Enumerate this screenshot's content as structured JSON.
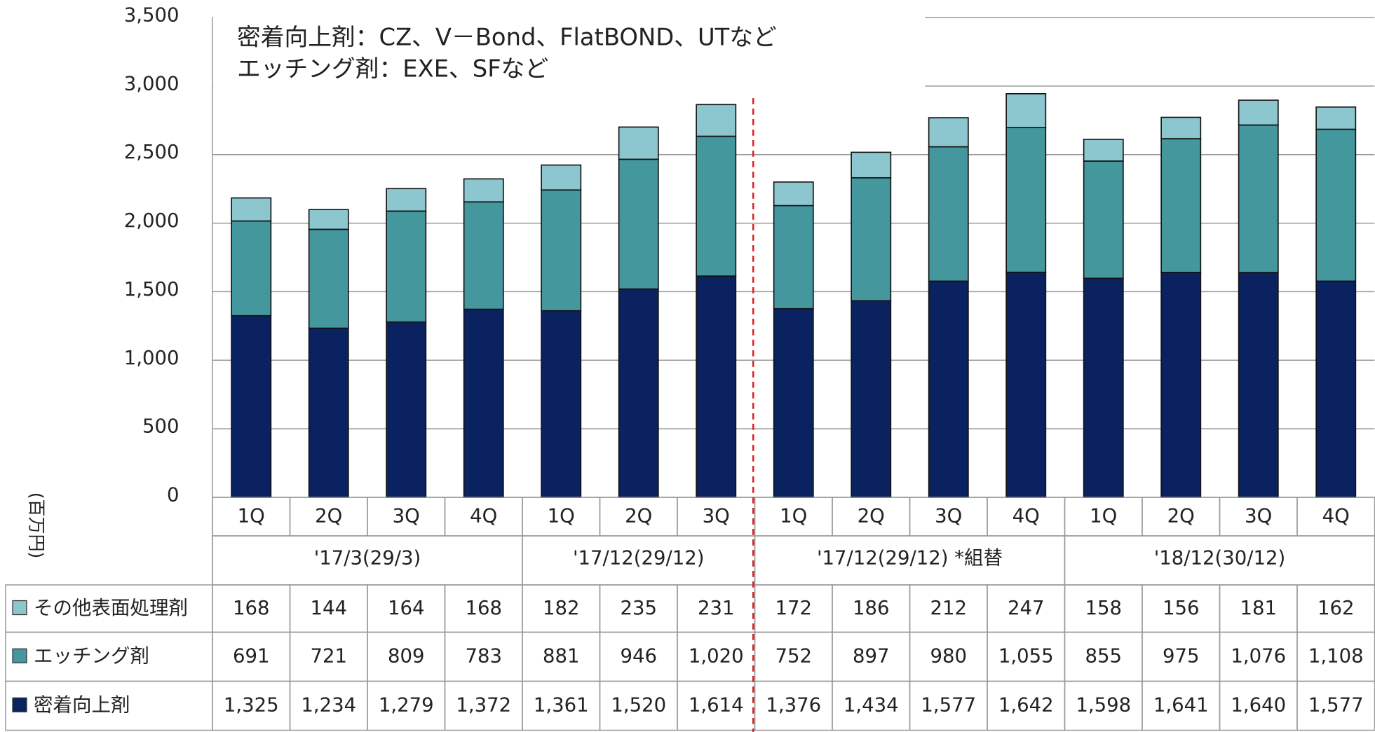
{
  "chart_data": {
    "type": "stacked-bar",
    "y_label": "(百万円)",
    "annotations": [
      "密着向上剤：CZ、V－Bond、FlatBOND、UTなど",
      "エッチング剤：EXE、SFなど"
    ],
    "groups": [
      {
        "name": "'17/3(29/3)",
        "categories": [
          "1Q",
          "2Q",
          "3Q",
          "4Q"
        ]
      },
      {
        "name": "'17/12(29/12)",
        "categories": [
          "1Q",
          "2Q",
          "3Q"
        ]
      },
      {
        "name": "'17/12(29/12) *組替",
        "categories": [
          "1Q",
          "2Q",
          "3Q",
          "4Q"
        ]
      },
      {
        "name": "'18/12(30/12)",
        "categories": [
          "1Q",
          "2Q",
          "3Q",
          "4Q"
        ]
      }
    ],
    "series": [
      {
        "name": "その他表面処理剤",
        "color": "#8cc6cf",
        "values": [
          168,
          144,
          164,
          168,
          182,
          235,
          231,
          172,
          186,
          212,
          247,
          158,
          156,
          181,
          162
        ],
        "value_labels": [
          "168",
          "144",
          "164",
          "168",
          "182",
          "235",
          "231",
          "172",
          "186",
          "212",
          "247",
          "158",
          "156",
          "181",
          "162"
        ]
      },
      {
        "name": "エッチング剤",
        "color": "#45979e",
        "values": [
          691,
          721,
          809,
          783,
          881,
          946,
          1020,
          752,
          897,
          980,
          1055,
          855,
          975,
          1076,
          1108
        ],
        "value_labels": [
          "691",
          "721",
          "809",
          "783",
          "881",
          "946",
          "1,020",
          "752",
          "897",
          "980",
          "1,055",
          "855",
          "975",
          "1,076",
          "1,108"
        ]
      },
      {
        "name": "密着向上剤",
        "color": "#0b2260",
        "values": [
          1325,
          1234,
          1279,
          1372,
          1361,
          1520,
          1614,
          1376,
          1434,
          1577,
          1642,
          1598,
          1641,
          1640,
          1577
        ],
        "value_labels": [
          "1,325",
          "1,234",
          "1,279",
          "1,372",
          "1,361",
          "1,520",
          "1,614",
          "1,376",
          "1,434",
          "1,577",
          "1,642",
          "1,598",
          "1,641",
          "1,640",
          "1,577"
        ]
      }
    ],
    "ylim": [
      0,
      3500
    ],
    "yticks": [
      0,
      500,
      {
        "value": 1000,
        "label": "1,000"
      },
      {
        "value": 1500,
        "label": "1,500"
      },
      {
        "value": 2000,
        "label": "2,000"
      },
      {
        "value": 2500,
        "label": "2,500"
      },
      {
        "value": 3000,
        "label": "3,000"
      },
      {
        "value": 3500,
        "label": "3,500"
      }
    ],
    "grid": true
  }
}
